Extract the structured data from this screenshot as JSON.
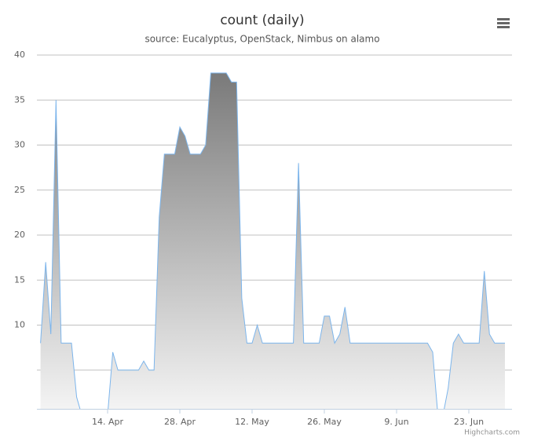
{
  "chart_data": {
    "type": "area",
    "title": "count (daily)",
    "subtitle": "source: Eucalyptus, OpenStack, Nimbus on alamo",
    "credits": "Highcharts.com",
    "categories": [
      null,
      null,
      null,
      null,
      null,
      null,
      null,
      null,
      null,
      null,
      null,
      null,
      null,
      "14. Apr",
      null,
      null,
      null,
      null,
      null,
      null,
      null,
      null,
      null,
      null,
      null,
      null,
      null,
      "28. Apr",
      null,
      null,
      null,
      null,
      null,
      null,
      null,
      null,
      null,
      null,
      null,
      null,
      null,
      "12. May",
      null,
      null,
      null,
      null,
      null,
      null,
      null,
      null,
      null,
      null,
      null,
      null,
      null,
      "26. May",
      null,
      null,
      null,
      null,
      null,
      null,
      null,
      null,
      null,
      null,
      null,
      null,
      null,
      "9. Jun",
      null,
      null,
      null,
      null,
      null,
      null,
      null,
      null,
      null,
      null,
      null,
      null,
      null,
      "23. Jun",
      null,
      null,
      null,
      null,
      null,
      null,
      null
    ],
    "values": [
      8,
      17,
      9,
      35,
      8,
      8,
      8,
      2,
      0,
      0,
      0,
      0,
      0,
      0,
      7,
      5,
      5,
      5,
      5,
      5,
      6,
      5,
      5,
      22,
      29,
      29,
      29,
      32,
      31,
      29,
      29,
      29,
      30,
      38,
      38,
      38,
      38,
      37,
      37,
      13,
      8,
      8,
      10,
      8,
      8,
      8,
      8,
      8,
      8,
      8,
      28,
      8,
      8,
      8,
      8,
      11,
      11,
      8,
      9,
      12,
      8,
      8,
      8,
      8,
      8,
      8,
      8,
      8,
      8,
      8,
      8,
      8,
      8,
      8,
      8,
      8,
      7,
      0,
      0,
      3,
      8,
      9,
      8,
      8,
      8,
      8,
      16,
      9,
      8,
      8,
      8
    ],
    "color": "#7cb5ec",
    "ylim": [
      0.7,
      40
    ],
    "yticks": [
      10,
      15,
      20,
      25,
      30,
      35,
      40
    ],
    "unlabeled_yticks": [
      5
    ],
    "grid": true
  }
}
